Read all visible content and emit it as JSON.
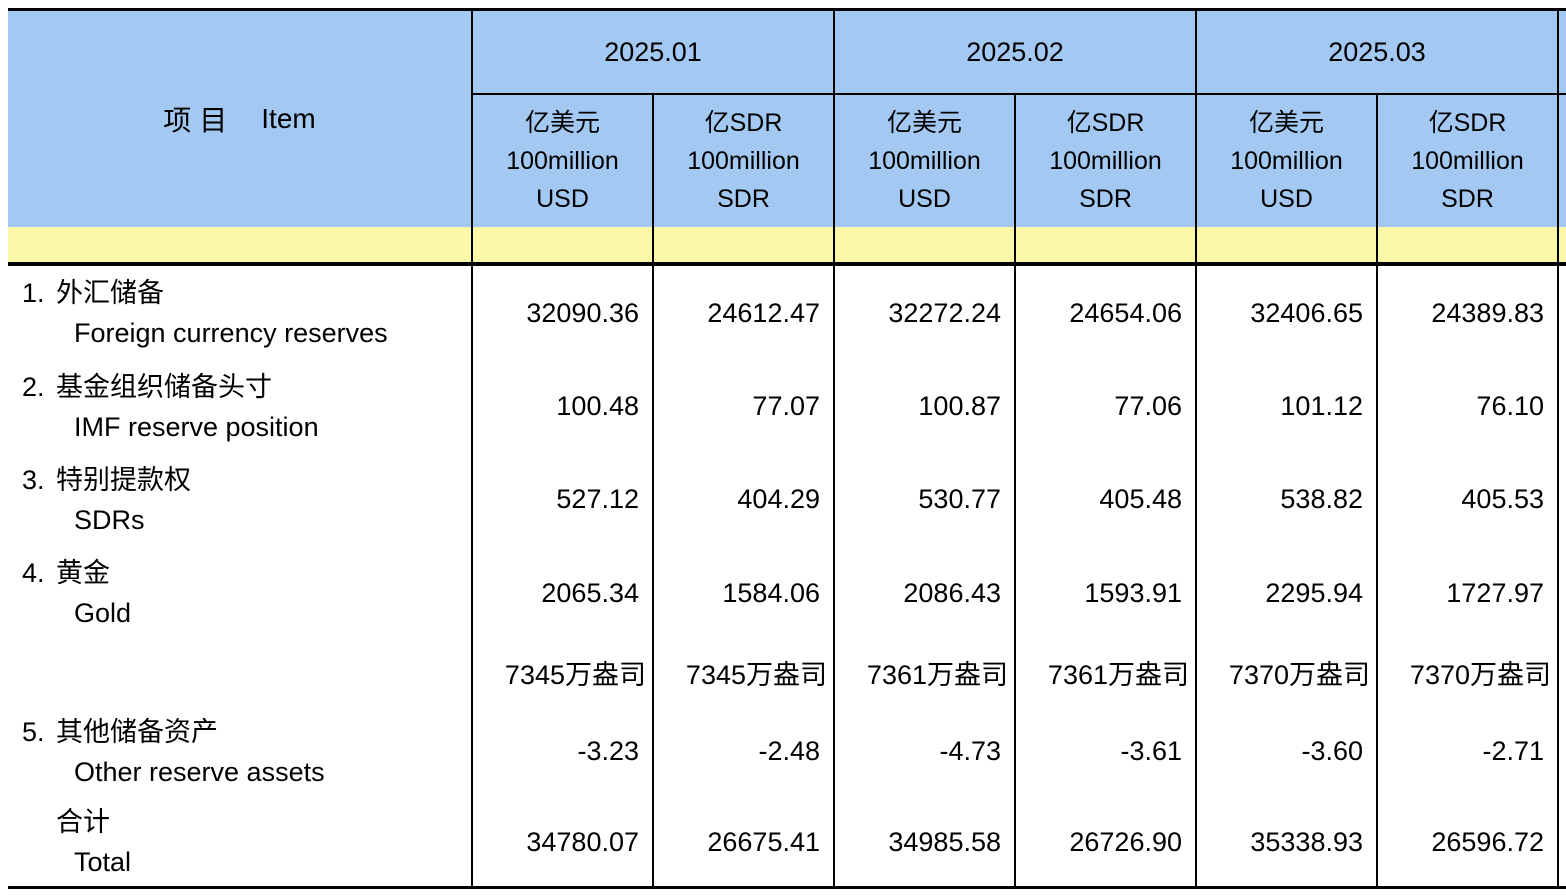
{
  "table": {
    "item_header_cn": "项目",
    "item_header_en": "Item",
    "colors": {
      "header_blue": "#A3C9F3",
      "band_yellow": "#FBF9A8",
      "border_black": "#000000",
      "background_white": "#ffffff"
    },
    "col_groups": [
      {
        "month": "2025.01",
        "sub": [
          {
            "cn": "亿美元",
            "l2": "100million",
            "l3": "USD"
          },
          {
            "cn": "亿SDR",
            "l2": "100million",
            "l3": "SDR"
          }
        ]
      },
      {
        "month": "2025.02",
        "sub": [
          {
            "cn": "亿美元",
            "l2": "100million",
            "l3": "USD"
          },
          {
            "cn": "亿SDR",
            "l2": "100million",
            "l3": "SDR"
          }
        ]
      },
      {
        "month": "2025.03",
        "sub": [
          {
            "cn": "亿美元",
            "l2": "100million",
            "l3": "USD"
          },
          {
            "cn": "亿SDR",
            "l2": "100million",
            "l3": "SDR"
          }
        ]
      }
    ],
    "rows": [
      {
        "type": "item",
        "num": "1.",
        "cn": "外汇储备",
        "en": "Foreign currency reserves",
        "values": [
          "32090.36",
          "24612.47",
          "32272.24",
          "24654.06",
          "32406.65",
          "24389.83"
        ]
      },
      {
        "type": "item",
        "num": "2.",
        "cn": "基金组织储备头寸",
        "en": "IMF reserve position",
        "values": [
          "100.48",
          "77.07",
          "100.87",
          "77.06",
          "101.12",
          "76.10"
        ]
      },
      {
        "type": "item",
        "num": "3.",
        "cn": "特别提款权",
        "en": "SDRs",
        "values": [
          "527.12",
          "404.29",
          "530.77",
          "405.48",
          "538.82",
          "405.53"
        ]
      },
      {
        "type": "item",
        "num": "4.",
        "cn": "黄金",
        "en": "Gold",
        "values": [
          "2065.34",
          "1584.06",
          "2086.43",
          "1593.91",
          "2295.94",
          "1727.97"
        ]
      },
      {
        "type": "gold_ounces",
        "num": "",
        "cn": "",
        "en": "",
        "values": [
          "7345万盎司",
          "7345万盎司",
          "7361万盎司",
          "7361万盎司",
          "7370万盎司",
          "7370万盎司"
        ]
      },
      {
        "type": "item",
        "num": "5.",
        "cn": "其他储备资产",
        "en": "Other reserve assets",
        "values": [
          "-3.23",
          "-2.48",
          "-4.73",
          "-3.61",
          "-3.60",
          "-2.71"
        ]
      },
      {
        "type": "total",
        "num": "",
        "cn": "合计",
        "en": "Total",
        "values": [
          "34780.07",
          "26675.41",
          "34985.58",
          "26726.90",
          "35338.93",
          "26596.72"
        ]
      }
    ]
  }
}
